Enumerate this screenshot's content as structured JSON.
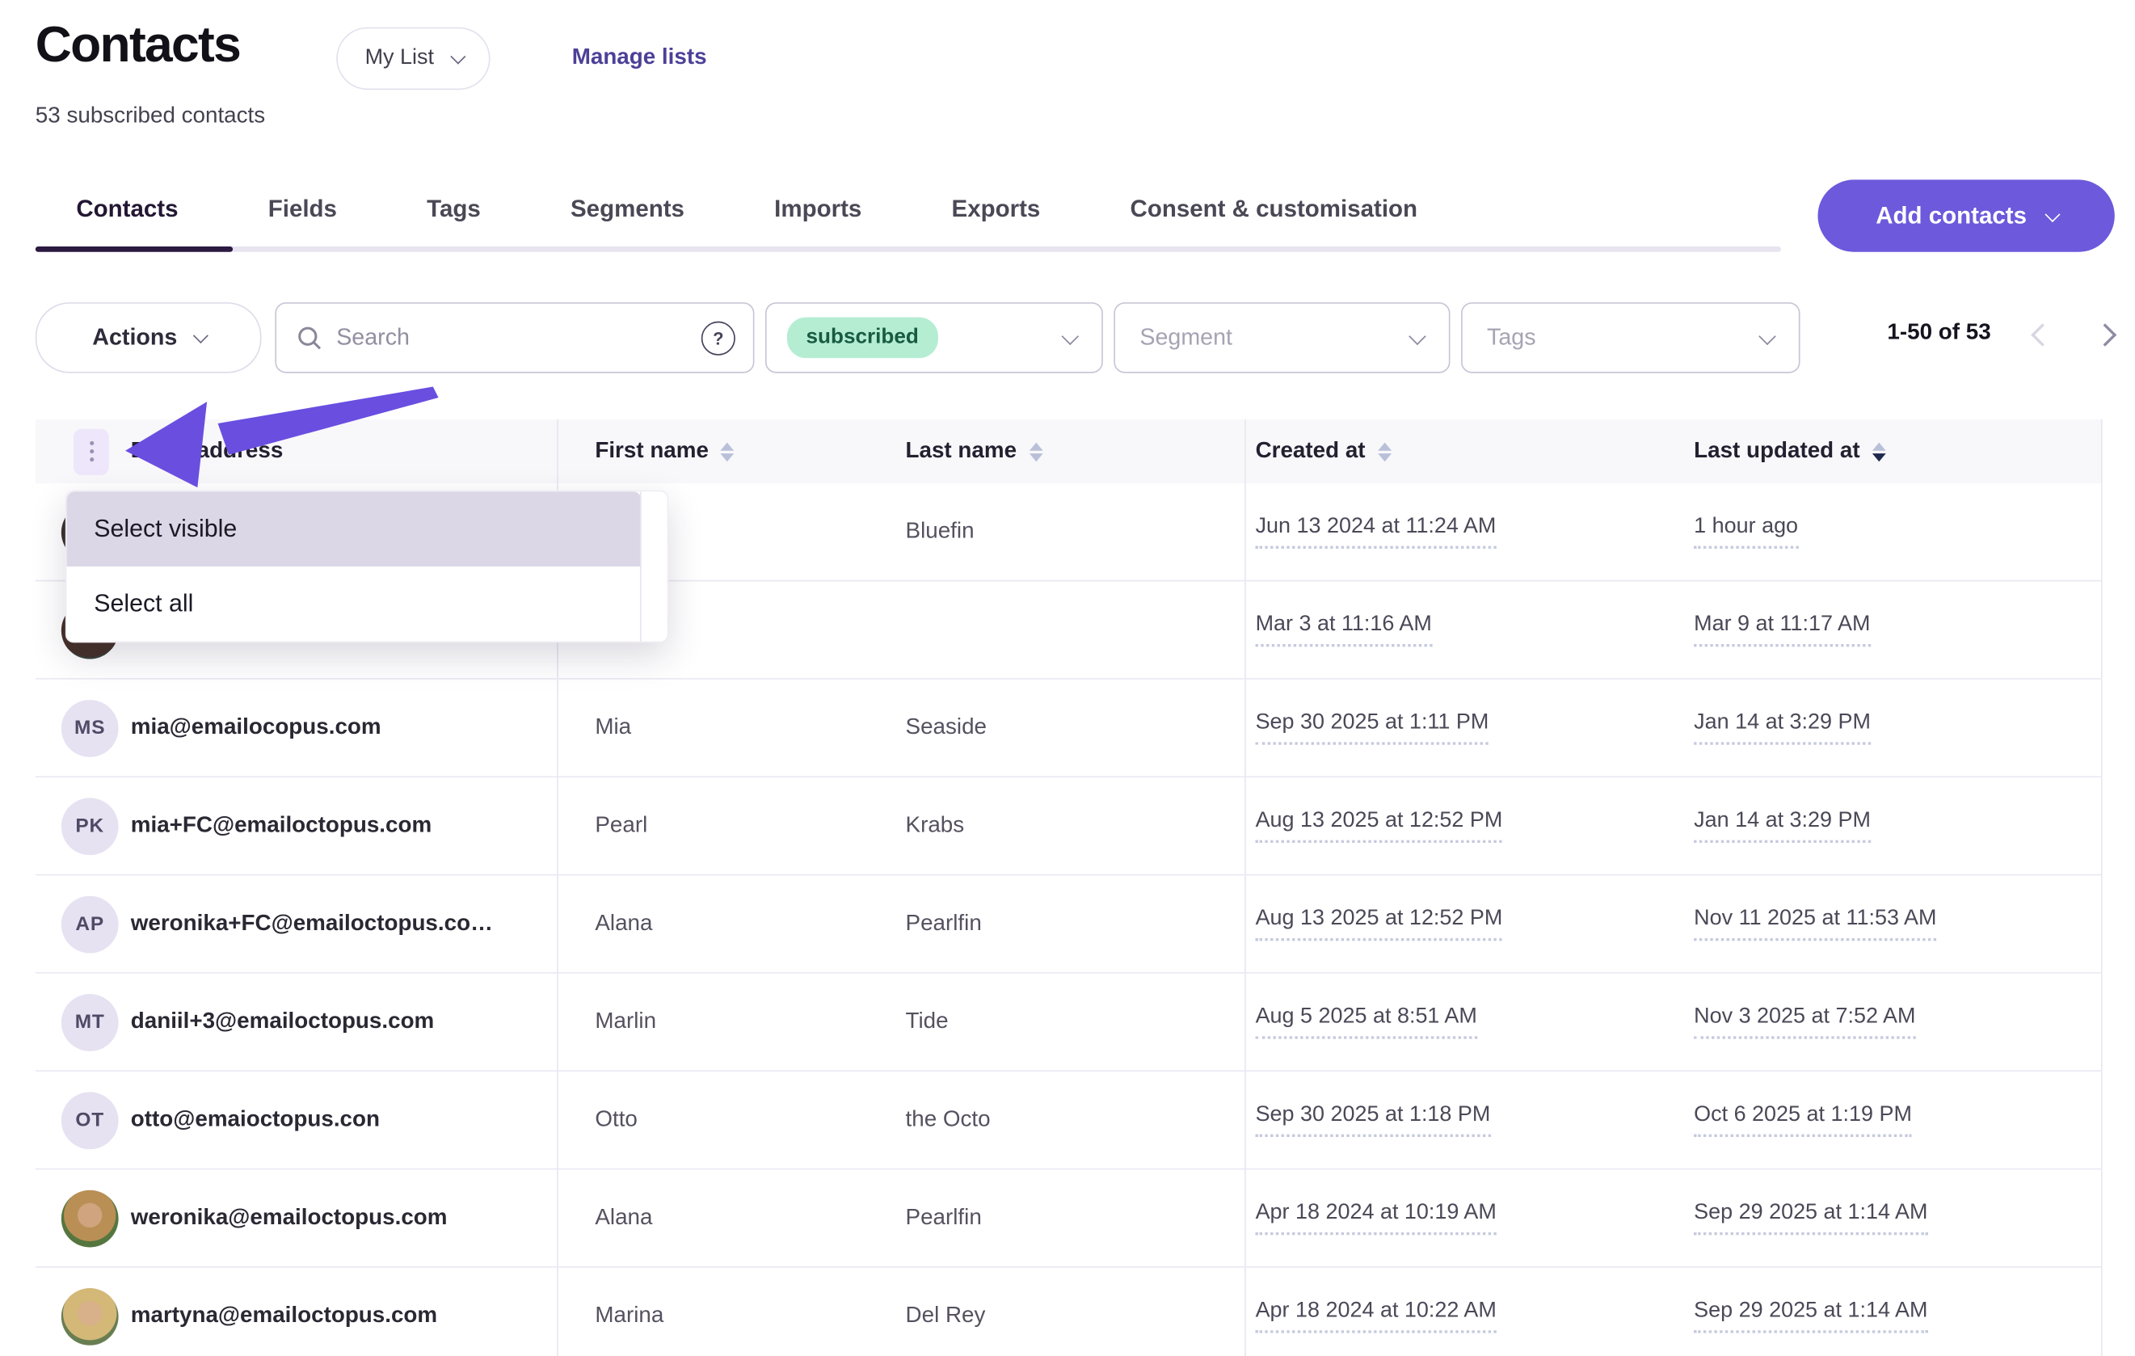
{
  "header": {
    "title": "Contacts",
    "list_selector": "My List",
    "manage_lists": "Manage lists",
    "subtitle": "53 subscribed contacts"
  },
  "tabs": {
    "items": [
      "Contacts",
      "Fields",
      "Tags",
      "Segments",
      "Imports",
      "Exports",
      "Consent & customisation"
    ],
    "active": "Contacts",
    "add_button": "Add contacts"
  },
  "filters": {
    "actions_label": "Actions",
    "search_placeholder": "Search",
    "help_glyph": "?",
    "status_value": "subscribed",
    "segment_placeholder": "Segment",
    "tags_placeholder": "Tags",
    "pagination": "1-50 of 53"
  },
  "selection_menu": {
    "items": [
      "Select visible",
      "Select all"
    ],
    "highlighted": "Select visible"
  },
  "table": {
    "columns": [
      {
        "label": "Email address",
        "sortable": false
      },
      {
        "label": "First name",
        "sortable": true,
        "sorted": "none"
      },
      {
        "label": "Last name",
        "sortable": true,
        "sorted": "none"
      },
      {
        "label": "Created at",
        "sortable": true,
        "sorted": "none"
      },
      {
        "label": "Last updated at",
        "sortable": true,
        "sorted": "desc"
      }
    ],
    "rows": [
      {
        "email": "",
        "first": "",
        "last": "Bluefin",
        "created": "Jun 13 2024 at 11:24 AM",
        "updated": "1 hour ago",
        "avatar": {
          "type": "sliver"
        }
      },
      {
        "email": "",
        "first": "",
        "last": "",
        "created": "Mar 3 at 11:16 AM",
        "updated": "Mar 9 at 11:17 AM",
        "avatar": {
          "type": "photo",
          "variant": "a"
        }
      },
      {
        "email": "mia@emailocopus.com",
        "first": "Mia",
        "last": "Seaside",
        "created": "Sep 30 2025 at 1:11 PM",
        "updated": "Jan 14 at 3:29 PM",
        "avatar": {
          "type": "initials",
          "text": "MS"
        }
      },
      {
        "email": "mia+FC@emailoctopus.com",
        "first": "Pearl",
        "last": "Krabs",
        "created": "Aug 13 2025 at 12:52 PM",
        "updated": "Jan 14 at 3:29 PM",
        "avatar": {
          "type": "initials",
          "text": "PK"
        }
      },
      {
        "email": "weronika+FC@emailoctopus.co…",
        "first": "Alana",
        "last": "Pearlfin",
        "created": "Aug 13 2025 at 12:52 PM",
        "updated": "Nov 11 2025 at 11:53 AM",
        "avatar": {
          "type": "initials",
          "text": "AP"
        }
      },
      {
        "email": "daniil+3@emailoctopus.com",
        "first": "Marlin",
        "last": "Tide",
        "created": "Aug 5 2025 at 8:51 AM",
        "updated": "Nov 3 2025 at 7:52 AM",
        "avatar": {
          "type": "initials",
          "text": "MT"
        }
      },
      {
        "email": "otto@emaioctopus.con",
        "first": "Otto",
        "last": "the Octo",
        "created": "Sep 30 2025 at 1:18 PM",
        "updated": "Oct 6 2025 at 1:19 PM",
        "avatar": {
          "type": "initials",
          "text": "OT"
        }
      },
      {
        "email": "weronika@emailoctopus.com",
        "first": "Alana",
        "last": "Pearlfin",
        "created": "Apr 18 2024 at 10:19 AM",
        "updated": "Sep 29 2025 at 1:14 AM",
        "avatar": {
          "type": "photo",
          "variant": "b"
        }
      },
      {
        "email": "martyna@emailoctopus.com",
        "first": "Marina",
        "last": "Del Rey",
        "created": "Apr 18 2024 at 10:22 AM",
        "updated": "Sep 29 2025 at 1:14 AM",
        "avatar": {
          "type": "photo",
          "variant": "c"
        }
      }
    ]
  },
  "colors": {
    "accent_purple": "#6C59DB",
    "annotation_arrow": "#6A4EE0",
    "mint_badge_bg": "#B5EDD3",
    "mint_badge_text": "#175B41",
    "menu_highlight": "#DBD7E6",
    "table_header_bg": "#F8F7FA",
    "kebab_bg": "#EEE6FA",
    "link_purple": "#4C4098"
  }
}
